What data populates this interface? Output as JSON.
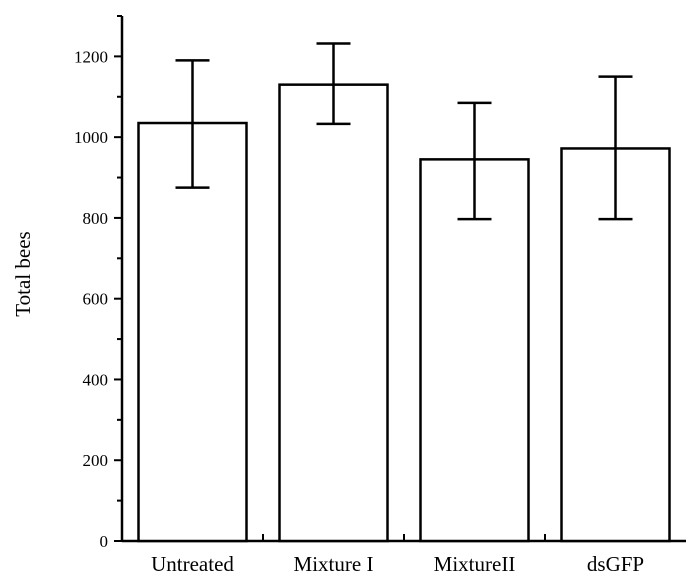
{
  "chart_data": {
    "type": "bar",
    "categories": [
      "Untreated",
      "Mixture I",
      "MixtureII",
      "dsGFP"
    ],
    "values": [
      1035,
      1130,
      945,
      972
    ],
    "error_upper": [
      1190,
      1232,
      1085,
      1150
    ],
    "error_lower": [
      875,
      1033,
      797,
      797
    ],
    "title": "",
    "xlabel": "",
    "ylabel": "Total bees",
    "ylim": [
      0,
      1300
    ],
    "yticks": [
      0,
      200,
      400,
      600,
      800,
      1000,
      1200
    ],
    "ytick_labels": [
      "0",
      "200",
      "400",
      "600",
      "800",
      "1000",
      "1200"
    ],
    "grid": false,
    "legend": "none"
  }
}
